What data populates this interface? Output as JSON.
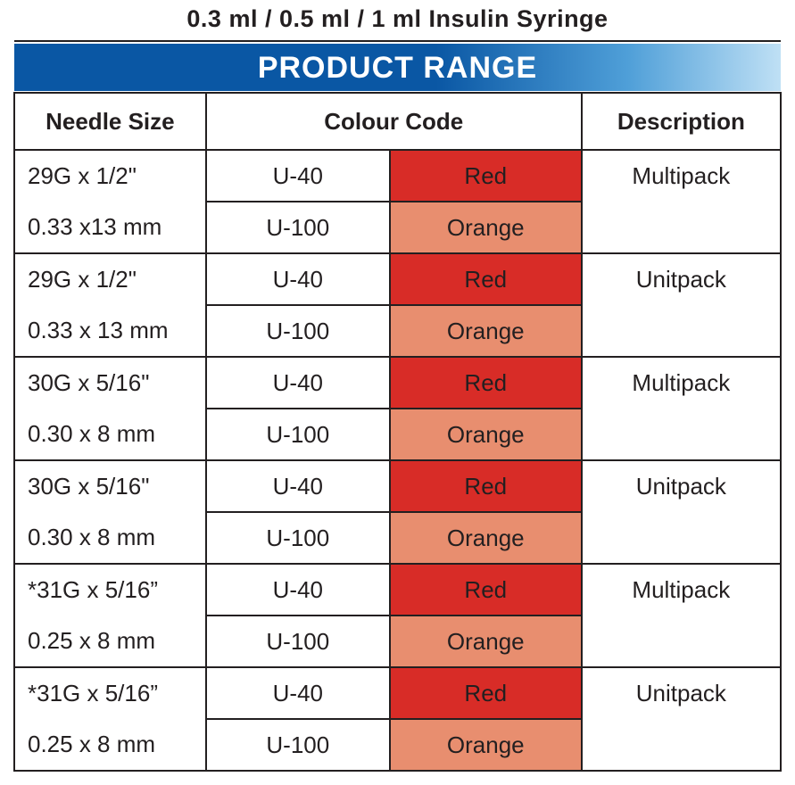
{
  "title": "0.3 ml / 0.5 ml / 1 ml Insulin Syringe",
  "banner": "PRODUCT RANGE",
  "headers": {
    "needle": "Needle Size",
    "colour": "Colour Code",
    "desc": "Description"
  },
  "colours": {
    "red_bg": "#d82c27",
    "orange_bg": "#e88e6f",
    "border": "#231f20",
    "banner_grad_start": "#0a57a4",
    "banner_grad_end": "#bfe0f5",
    "banner_text": "#ffffff"
  },
  "rows": [
    {
      "needle_top": "29G x 1/2\"",
      "needle_bot": "0.33 x13 mm",
      "u_top": "U-40",
      "col_top": "Red",
      "col_top_bg": "red",
      "u_bot": "U-100",
      "col_bot": "Orange",
      "col_bot_bg": "orange",
      "desc": "Multipack"
    },
    {
      "needle_top": "29G x 1/2\"",
      "needle_bot": "0.33 x 13 mm",
      "u_top": "U-40",
      "col_top": "Red",
      "col_top_bg": "red",
      "u_bot": "U-100",
      "col_bot": "Orange",
      "col_bot_bg": "orange",
      "desc": "Unitpack"
    },
    {
      "needle_top": "30G x 5/16\"",
      "needle_bot": "0.30 x 8 mm",
      "u_top": "U-40",
      "col_top": "Red",
      "col_top_bg": "red",
      "u_bot": "U-100",
      "col_bot": "Orange",
      "col_bot_bg": "orange",
      "desc": "Multipack"
    },
    {
      "needle_top": "30G x 5/16\"",
      "needle_bot": "0.30 x 8 mm",
      "u_top": "U-40",
      "col_top": "Red",
      "col_top_bg": "red",
      "u_bot": "U-100",
      "col_bot": "Orange",
      "col_bot_bg": "orange",
      "desc": "Unitpack"
    },
    {
      "needle_top": "*31G x 5/16”",
      "needle_bot": "0.25 x 8 mm",
      "u_top": "U-40",
      "col_top": "Red",
      "col_top_bg": "red",
      "u_bot": "U-100",
      "col_bot": "Orange",
      "col_bot_bg": "orange",
      "desc": "Multipack"
    },
    {
      "needle_top": "*31G x 5/16”",
      "needle_bot": "0.25 x 8 mm",
      "u_top": "U-40",
      "col_top": "Red",
      "col_top_bg": "red",
      "u_bot": "U-100",
      "col_bot": "Orange",
      "col_bot_bg": "orange",
      "desc": "Unitpack"
    }
  ]
}
